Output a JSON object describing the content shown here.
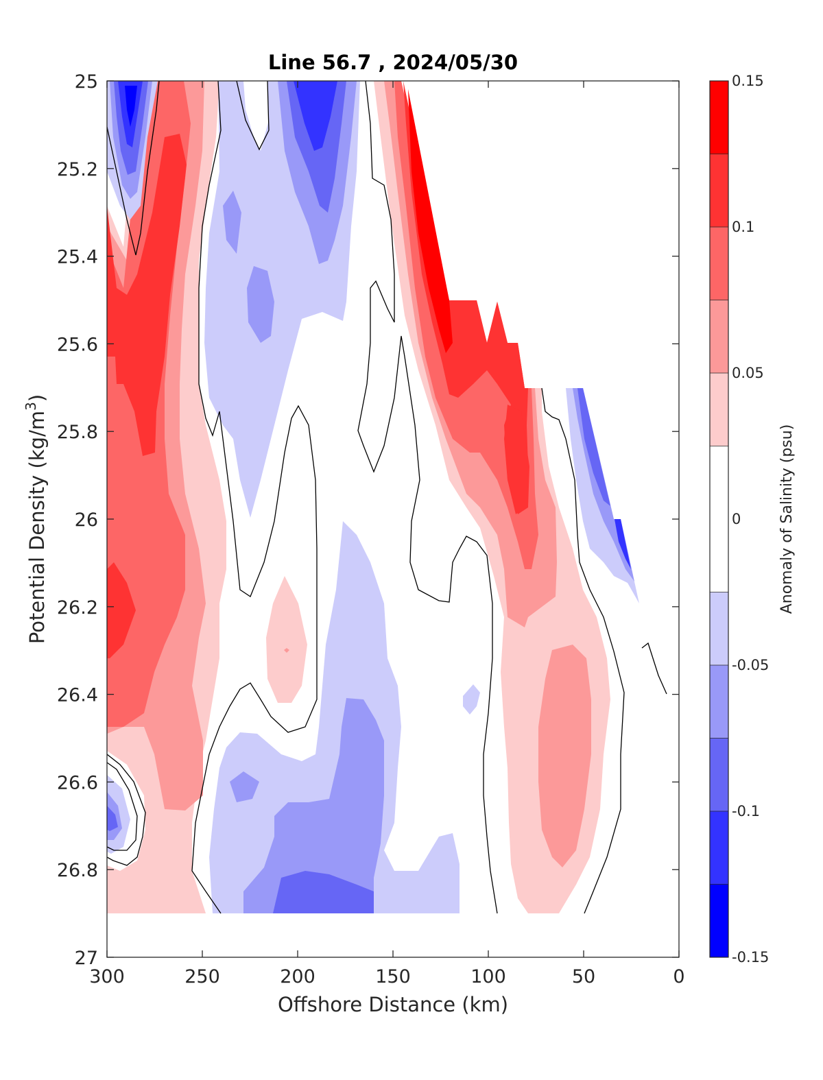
{
  "chart_data": {
    "type": "contourf",
    "title": "Line 56.7 , 2024/05/30",
    "xlabel": "Offshore Distance (km)",
    "ylabel": "Potential Density (kg/m",
    "ylabel_sup": "3",
    "ylabel_end": ")",
    "xlim": [
      300,
      0
    ],
    "ylim": [
      25,
      27
    ],
    "x_reversed": true,
    "y_reversed": true,
    "x_ticks": [
      "300",
      "250",
      "200",
      "150",
      "100",
      "50",
      "0"
    ],
    "x_tick_values": [
      300,
      250,
      200,
      150,
      100,
      50,
      0
    ],
    "y_ticks": [
      "25",
      "25.2",
      "25.4",
      "25.6",
      "25.8",
      "26",
      "26.2",
      "26.4",
      "26.6",
      "26.8",
      "27"
    ],
    "y_tick_values": [
      25,
      25.2,
      25.4,
      25.6,
      25.8,
      26,
      26.2,
      26.4,
      26.6,
      26.8,
      27
    ],
    "colorbar": {
      "label": "Anomaly of Salinity (psu)",
      "range": [
        -0.15,
        0.15
      ],
      "tick_labels": [
        "-0.15",
        "-0.1",
        "-0.05",
        "0",
        "0.05",
        "0.1",
        "0.15"
      ],
      "tick_values": [
        -0.15,
        -0.1,
        -0.05,
        0,
        0.05,
        0.1,
        0.15
      ],
      "levels": [
        -0.15,
        -0.125,
        -0.1,
        -0.075,
        -0.05,
        -0.025,
        0.025,
        0.05,
        0.075,
        0.1,
        0.125,
        0.15
      ],
      "colors": [
        "#0000ff",
        "#3333ff",
        "#6666f5",
        "#9999f8",
        "#ccccfb",
        "#ffffff",
        "#fdcccc",
        "#fc9999",
        "#fd6666",
        "#fe3333",
        "#ff0000"
      ]
    },
    "contour_lines_psu": [
      -0.025,
      0.025
    ],
    "field_summary": [
      {
        "feature": "negative core",
        "distance_km": 287,
        "density": 25.05,
        "value": -0.14
      },
      {
        "feature": "negative core",
        "distance_km": 190,
        "density": 25.1,
        "value": -0.11
      },
      {
        "feature": "negative patch",
        "distance_km": 227,
        "density": 25.3,
        "value": -0.07
      },
      {
        "feature": "negative patch",
        "distance_km": 214,
        "density": 25.55,
        "value": -0.07
      },
      {
        "feature": "negative core",
        "distance_km": 290,
        "density": 26.7,
        "value": -0.1
      },
      {
        "feature": "negative pool",
        "distance_km": 190,
        "density": 26.75,
        "value": -0.1
      },
      {
        "feature": "positive tongue",
        "distance_km": 265,
        "density": 25.5,
        "value": 0.12
      },
      {
        "feature": "positive core",
        "distance_km": 295,
        "density": 26.2,
        "value": 0.12
      },
      {
        "feature": "positive front",
        "distance_km": 125,
        "density": 25.5,
        "value": 0.14
      },
      {
        "feature": "positive core",
        "distance_km": 85,
        "density": 25.9,
        "value": 0.12
      },
      {
        "feature": "positive patch",
        "distance_km": 60,
        "density": 26.5,
        "value": 0.08
      },
      {
        "feature": "positive patch",
        "distance_km": 205,
        "density": 26.3,
        "value": 0.05
      },
      {
        "feature": "negative edge",
        "distance_km": 35,
        "density": 25.95,
        "value": -0.12
      }
    ]
  }
}
